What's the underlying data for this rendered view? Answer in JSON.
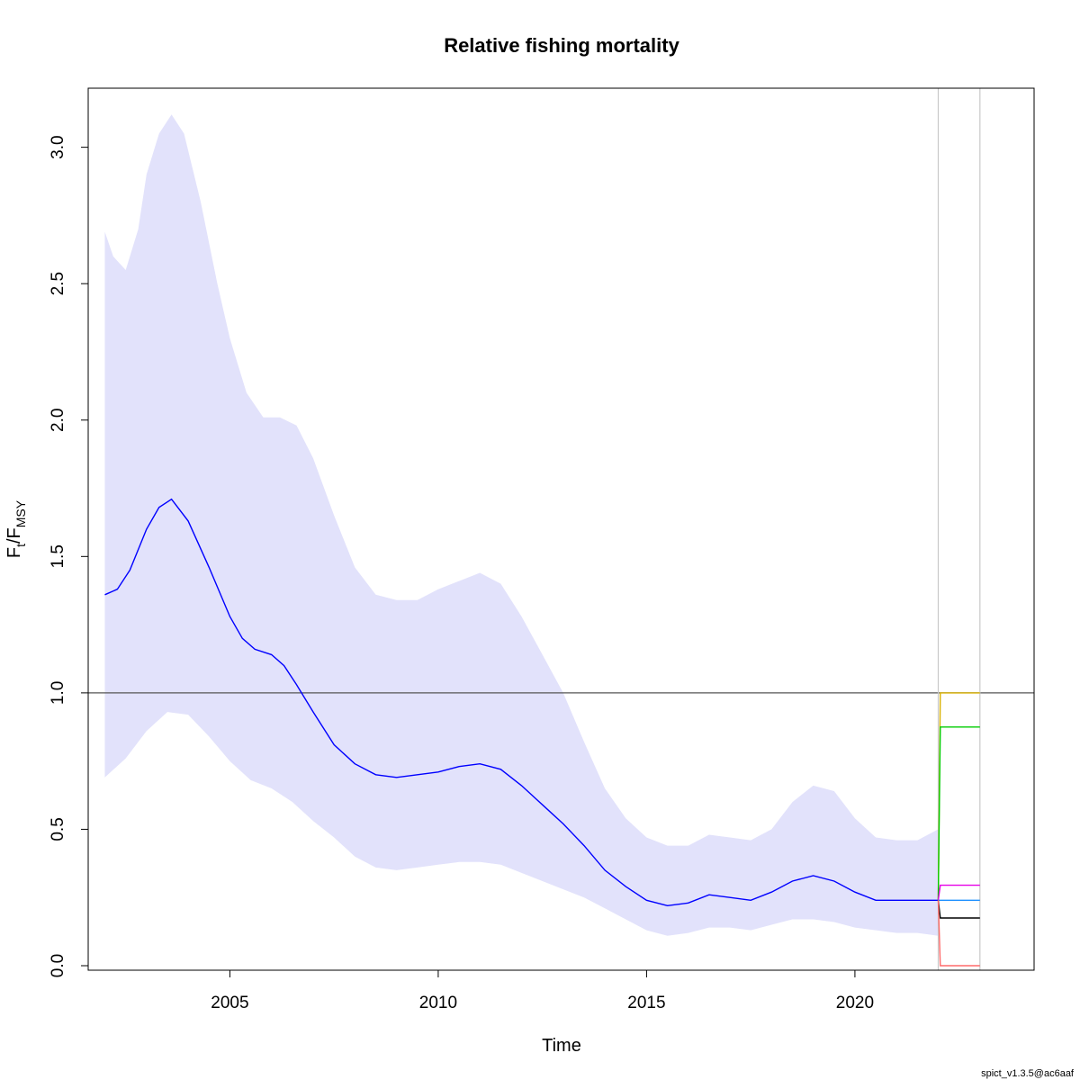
{
  "chart_data": {
    "type": "line",
    "title": "Relative fishing mortality",
    "xlabel": "Time",
    "ylabel": {
      "main": "F",
      "sub1": "t",
      "slash": "/F",
      "sub2": "MSY"
    },
    "xlim": [
      2001.6,
      2024.3
    ],
    "ylim": [
      0.0,
      3.2
    ],
    "x_ticks": [
      2005,
      2010,
      2015,
      2020
    ],
    "y_ticks": [
      0.0,
      0.5,
      1.0,
      1.5,
      2.0,
      2.5,
      3.0
    ],
    "reference_line_y": 1.0,
    "vertical_lines_x": [
      2022.0,
      2023.0
    ],
    "ci_color": "#e2e2fb",
    "estimate": {
      "name": "F/Fmsy",
      "color": "#0000ff",
      "x": [
        2002.0,
        2002.3,
        2002.6,
        2003.0,
        2003.3,
        2003.6,
        2004.0,
        2004.5,
        2005.0,
        2005.3,
        2005.6,
        2006.0,
        2006.3,
        2006.6,
        2007.0,
        2007.5,
        2008.0,
        2008.5,
        2009.0,
        2009.5,
        2010.0,
        2010.5,
        2011.0,
        2011.5,
        2012.0,
        2012.5,
        2013.0,
        2013.5,
        2014.0,
        2014.5,
        2015.0,
        2015.5,
        2016.0,
        2016.5,
        2017.0,
        2017.5,
        2018.0,
        2018.5,
        2019.0,
        2019.5,
        2020.0,
        2020.5,
        2021.0,
        2021.5,
        2022.0
      ],
      "y": [
        1.36,
        1.38,
        1.45,
        1.6,
        1.68,
        1.71,
        1.63,
        1.46,
        1.28,
        1.2,
        1.16,
        1.14,
        1.1,
        1.03,
        0.93,
        0.81,
        0.74,
        0.7,
        0.69,
        0.7,
        0.71,
        0.73,
        0.74,
        0.72,
        0.66,
        0.59,
        0.52,
        0.44,
        0.35,
        0.29,
        0.24,
        0.22,
        0.23,
        0.26,
        0.25,
        0.24,
        0.27,
        0.31,
        0.33,
        0.31,
        0.27,
        0.24,
        0.24,
        0.24,
        0.24
      ]
    },
    "ci_upper": {
      "x": [
        2002.0,
        2002.2,
        2002.5,
        2002.8,
        2003.0,
        2003.3,
        2003.6,
        2003.9,
        2004.3,
        2004.7,
        2005.0,
        2005.4,
        2005.8,
        2006.2,
        2006.6,
        2007.0,
        2007.5,
        2008.0,
        2008.5,
        2009.0,
        2009.5,
        2010.0,
        2010.5,
        2011.0,
        2011.5,
        2012.0,
        2012.5,
        2013.0,
        2013.5,
        2014.0,
        2014.5,
        2015.0,
        2015.5,
        2016.0,
        2016.5,
        2017.0,
        2017.5,
        2018.0,
        2018.5,
        2019.0,
        2019.5,
        2020.0,
        2020.5,
        2021.0,
        2021.5,
        2022.0
      ],
      "y": [
        2.69,
        2.6,
        2.55,
        2.7,
        2.9,
        3.05,
        3.12,
        3.05,
        2.8,
        2.5,
        2.3,
        2.1,
        2.01,
        2.01,
        1.98,
        1.86,
        1.65,
        1.46,
        1.36,
        1.34,
        1.34,
        1.38,
        1.41,
        1.44,
        1.4,
        1.28,
        1.14,
        1.0,
        0.82,
        0.65,
        0.54,
        0.47,
        0.44,
        0.44,
        0.48,
        0.47,
        0.46,
        0.5,
        0.6,
        0.66,
        0.64,
        0.54,
        0.47,
        0.46,
        0.46,
        0.5
      ]
    },
    "ci_lower": {
      "x": [
        2002.0,
        2002.5,
        2003.0,
        2003.5,
        2004.0,
        2004.5,
        2005.0,
        2005.5,
        2006.0,
        2006.5,
        2007.0,
        2007.5,
        2008.0,
        2008.5,
        2009.0,
        2009.5,
        2010.0,
        2010.5,
        2011.0,
        2011.5,
        2012.0,
        2012.5,
        2013.0,
        2013.5,
        2014.0,
        2014.5,
        2015.0,
        2015.5,
        2016.0,
        2016.5,
        2017.0,
        2017.5,
        2018.0,
        2018.5,
        2019.0,
        2019.5,
        2020.0,
        2020.5,
        2021.0,
        2021.5,
        2022.0
      ],
      "y": [
        0.69,
        0.76,
        0.86,
        0.93,
        0.92,
        0.84,
        0.75,
        0.68,
        0.65,
        0.6,
        0.53,
        0.47,
        0.4,
        0.36,
        0.35,
        0.36,
        0.37,
        0.38,
        0.38,
        0.37,
        0.34,
        0.31,
        0.28,
        0.25,
        0.21,
        0.17,
        0.13,
        0.11,
        0.12,
        0.14,
        0.14,
        0.13,
        0.15,
        0.17,
        0.17,
        0.16,
        0.14,
        0.13,
        0.12,
        0.12,
        0.11
      ]
    },
    "forecast_series": [
      {
        "color": "#d9b100",
        "x": [
          2022.0,
          2022.05,
          2023.0
        ],
        "y": [
          0.24,
          1.0,
          1.0
        ]
      },
      {
        "color": "#00cc00",
        "x": [
          2022.0,
          2022.05,
          2023.0
        ],
        "y": [
          0.24,
          0.875,
          0.875
        ]
      },
      {
        "color": "#e600e6",
        "x": [
          2022.0,
          2022.05,
          2023.0
        ],
        "y": [
          0.24,
          0.295,
          0.295
        ]
      },
      {
        "color": "#1e90ff",
        "x": [
          2022.0,
          2022.05,
          2023.0
        ],
        "y": [
          0.24,
          0.24,
          0.24
        ]
      },
      {
        "color": "#000000",
        "x": [
          2022.0,
          2022.05,
          2023.0
        ],
        "y": [
          0.24,
          0.175,
          0.175
        ]
      },
      {
        "color": "#ff6a6a",
        "x": [
          2022.0,
          2022.05,
          2023.0
        ],
        "y": [
          0.24,
          0.0,
          0.0
        ]
      }
    ]
  },
  "footer": "spict_v1.3.5@ac6aaf"
}
